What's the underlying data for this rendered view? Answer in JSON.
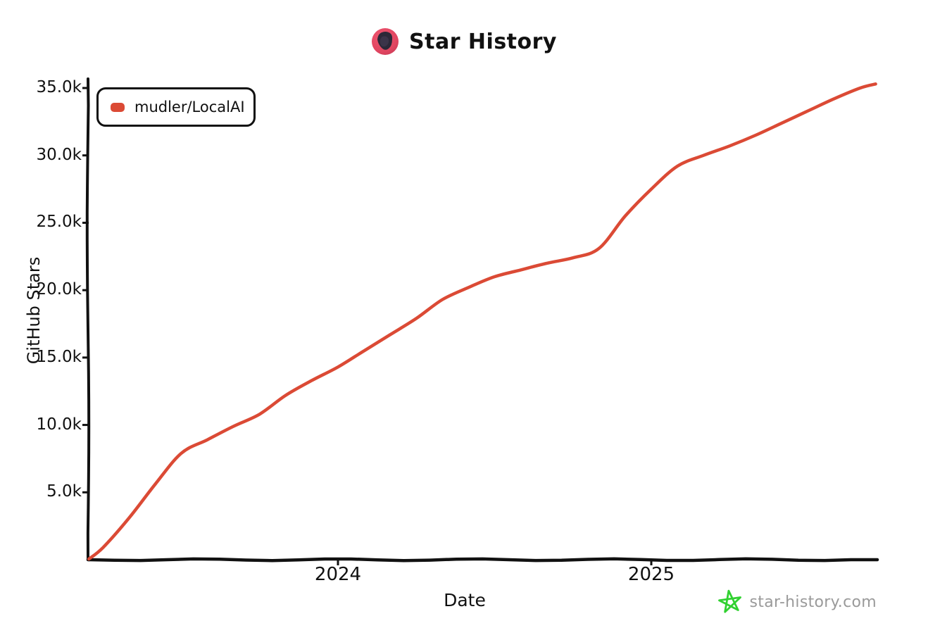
{
  "header": {
    "title": "Star History"
  },
  "legend": {
    "series": [
      {
        "label": "mudler/LocalAI",
        "color": "#db4a35"
      }
    ]
  },
  "watermark": {
    "text": "star-history.com",
    "star_color": "#31d131",
    "text_color": "#9a9a9a"
  },
  "colors": {
    "axis": "#111111",
    "background": "#ffffff"
  },
  "chart_data": {
    "type": "line",
    "title": "Star History",
    "xlabel": "Date",
    "ylabel": "GitHub Stars",
    "ylim": [
      0,
      35000
    ],
    "grid": false,
    "legend_position": "top-left",
    "style": "hand-drawn-xkcd",
    "x_range": [
      "2023-03-15",
      "2025-09-19"
    ],
    "y_ticks": [
      {
        "label": "35.0k",
        "value": 35000
      },
      {
        "label": "30.0k",
        "value": 30000
      },
      {
        "label": "25.0k",
        "value": 25000
      },
      {
        "label": "20.0k",
        "value": 20000
      },
      {
        "label": "15.0k",
        "value": 15000
      },
      {
        "label": "10.0k",
        "value": 10000
      },
      {
        "label": "5.0k",
        "value": 5000
      }
    ],
    "x_ticks": [
      {
        "label": "2024",
        "date": "2024-01-01"
      },
      {
        "label": "2025",
        "date": "2025-01-01"
      }
    ],
    "series": [
      {
        "name": "mudler/LocalAI",
        "color": "#db4a35",
        "points": [
          {
            "date": "2023-03-15",
            "stars": 50
          },
          {
            "date": "2023-04-01",
            "stars": 900
          },
          {
            "date": "2023-05-01",
            "stars": 3100
          },
          {
            "date": "2023-06-01",
            "stars": 5600
          },
          {
            "date": "2023-07-01",
            "stars": 7900
          },
          {
            "date": "2023-08-01",
            "stars": 8900
          },
          {
            "date": "2023-09-01",
            "stars": 9900
          },
          {
            "date": "2023-10-01",
            "stars": 10800
          },
          {
            "date": "2023-11-01",
            "stars": 12200
          },
          {
            "date": "2023-12-01",
            "stars": 13300
          },
          {
            "date": "2024-01-01",
            "stars": 14300
          },
          {
            "date": "2024-02-01",
            "stars": 15500
          },
          {
            "date": "2024-03-01",
            "stars": 16700
          },
          {
            "date": "2024-04-01",
            "stars": 17900
          },
          {
            "date": "2024-05-01",
            "stars": 19300
          },
          {
            "date": "2024-06-01",
            "stars": 20200
          },
          {
            "date": "2024-07-01",
            "stars": 21000
          },
          {
            "date": "2024-08-01",
            "stars": 21500
          },
          {
            "date": "2024-09-01",
            "stars": 22000
          },
          {
            "date": "2024-10-01",
            "stars": 22400
          },
          {
            "date": "2024-11-01",
            "stars": 23100
          },
          {
            "date": "2024-12-01",
            "stars": 25500
          },
          {
            "date": "2025-01-01",
            "stars": 27500
          },
          {
            "date": "2025-02-01",
            "stars": 29200
          },
          {
            "date": "2025-03-01",
            "stars": 30000
          },
          {
            "date": "2025-04-01",
            "stars": 30700
          },
          {
            "date": "2025-05-01",
            "stars": 31500
          },
          {
            "date": "2025-06-01",
            "stars": 32400
          },
          {
            "date": "2025-07-01",
            "stars": 33300
          },
          {
            "date": "2025-08-01",
            "stars": 34200
          },
          {
            "date": "2025-09-01",
            "stars": 35000
          },
          {
            "date": "2025-09-19",
            "stars": 35300
          }
        ]
      }
    ]
  }
}
